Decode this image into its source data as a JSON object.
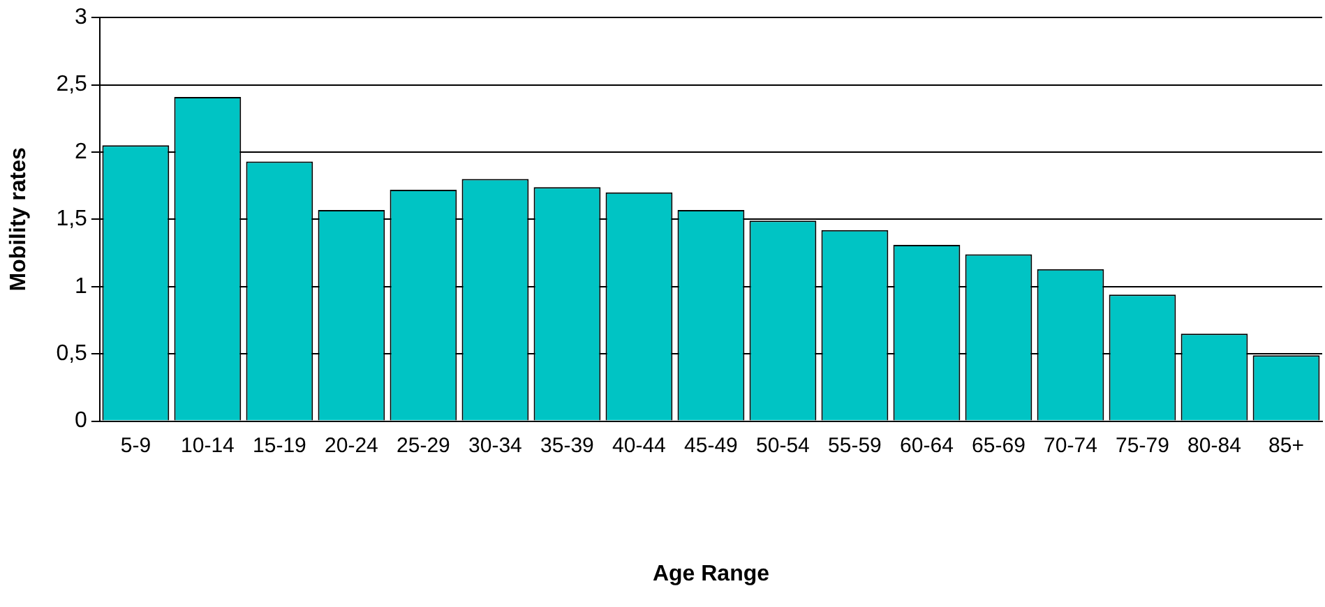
{
  "chart_data": {
    "type": "bar",
    "xlabel": "Age Range",
    "ylabel": "Mobility rates",
    "categories": [
      "5-9",
      "10-14",
      "15-19",
      "20-24",
      "25-29",
      "30-34",
      "35-39",
      "40-44",
      "45-49",
      "50-54",
      "55-59",
      "60-64",
      "65-69",
      "70-74",
      "75-79",
      "80-84",
      "85+"
    ],
    "values": [
      2.05,
      2.41,
      1.93,
      1.57,
      1.72,
      1.8,
      1.74,
      1.7,
      1.57,
      1.49,
      1.42,
      1.31,
      1.24,
      1.13,
      0.94,
      0.65,
      0.49
    ],
    "color": "#00c4c4",
    "ylim": [
      0,
      3
    ],
    "yticks": [
      0,
      {
        "value": 0.5,
        "label": "0,5"
      },
      1,
      {
        "value": 1.5,
        "label": "1,5"
      },
      2,
      {
        "value": 2.5,
        "label": "2,5"
      },
      3
    ],
    "grid": "y"
  }
}
